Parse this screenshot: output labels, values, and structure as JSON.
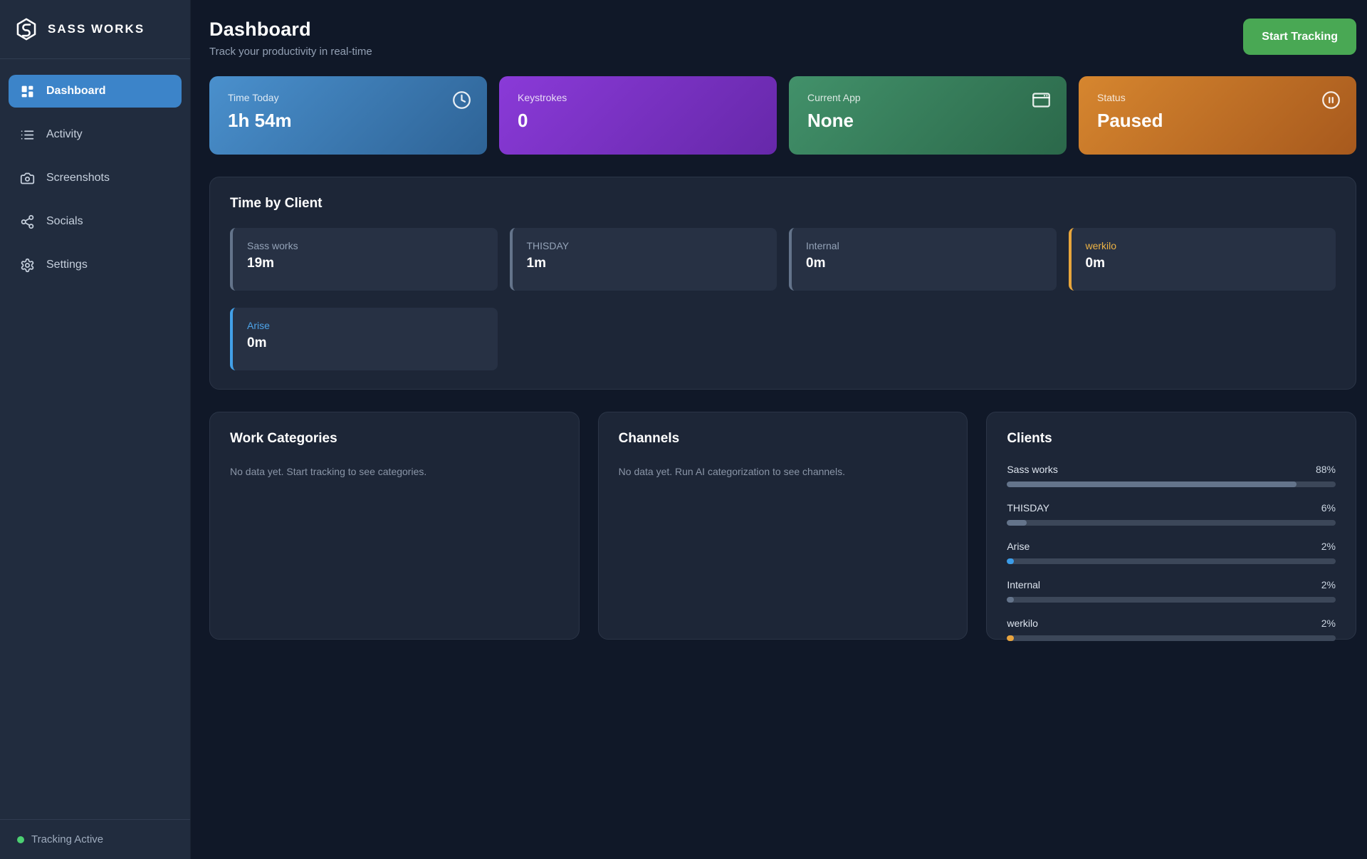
{
  "sidebar": {
    "logo_text": "SASS WORKS",
    "accent": "#3c84c9",
    "items": [
      {
        "label": "Dashboard",
        "icon": "dashboard-icon",
        "active": true
      },
      {
        "label": "Activity",
        "icon": "list-icon",
        "active": false
      },
      {
        "label": "Screenshots",
        "icon": "camera-icon",
        "active": false
      },
      {
        "label": "Socials",
        "icon": "share-icon",
        "active": false
      },
      {
        "label": "Settings",
        "icon": "gear-icon",
        "active": false
      }
    ],
    "footer": {
      "status_label": "Tracking Active",
      "dot_color": "#4cd072"
    }
  },
  "header": {
    "title": "Dashboard",
    "subtitle": "Track your productivity in real-time",
    "start_tracking_label": "Start Tracking",
    "button_color": "#49a854"
  },
  "stats": [
    {
      "label": "Time Today",
      "value": "1h 54m",
      "icon": "clock-icon",
      "gradient": [
        "#4a90cd",
        "#2e6396"
      ]
    },
    {
      "label": "Keystrokes",
      "value": "0",
      "icon": "",
      "gradient": [
        "#8a3ad8",
        "#6628a9"
      ]
    },
    {
      "label": "Current App",
      "value": "None",
      "icon": "app-window-icon",
      "gradient": [
        "#42916a",
        "#2b684a"
      ]
    },
    {
      "label": "Status",
      "value": "Paused",
      "icon": "pause-circle-icon",
      "gradient": [
        "#d6862f",
        "#a7591d"
      ]
    }
  ],
  "time_by_client": {
    "title": "Time by Client",
    "clients": [
      {
        "name": "Sass works",
        "time": "19m",
        "accent": "#64748b",
        "name_color": "#94a3b8"
      },
      {
        "name": "THISDAY",
        "time": "1m",
        "accent": "#64748b",
        "name_color": "#94a3b8"
      },
      {
        "name": "Internal",
        "time": "0m",
        "accent": "#64748b",
        "name_color": "#94a3b8"
      },
      {
        "name": "werkilo",
        "time": "0m",
        "accent": "#e8a63c",
        "name_color": "#ecb245"
      },
      {
        "name": "Arise",
        "time": "0m",
        "accent": "#42a0e8",
        "name_color": "#4da3e8"
      }
    ]
  },
  "panels": {
    "work_categories": {
      "title": "Work Categories",
      "empty_text": "No data yet. Start tracking to see categories."
    },
    "channels": {
      "title": "Channels",
      "empty_text": "No data yet. Run AI categorization to see channels."
    },
    "clients": {
      "title": "Clients",
      "rows": [
        {
          "name": "Sass works",
          "percent": 88,
          "percent_label": "88%",
          "bar_color": "#64748b"
        },
        {
          "name": "THISDAY",
          "percent": 6,
          "percent_label": "6%",
          "bar_color": "#64748b"
        },
        {
          "name": "Arise",
          "percent": 2,
          "percent_label": "2%",
          "bar_color": "#3b9ce8"
        },
        {
          "name": "Internal",
          "percent": 2,
          "percent_label": "2%",
          "bar_color": "#64748b"
        },
        {
          "name": "werkilo",
          "percent": 2,
          "percent_label": "2%",
          "bar_color": "#e9a43e"
        }
      ]
    }
  }
}
